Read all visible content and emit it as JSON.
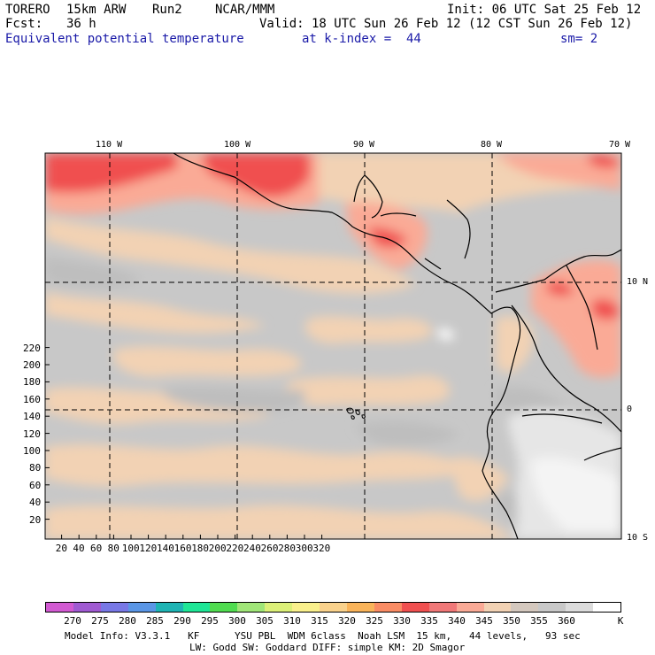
{
  "header": {
    "model": "TORERO",
    "resolution": "15km ARW",
    "run": "Run2",
    "org": "NCAR/MMM",
    "init": "Init: 06 UTC Sat 25 Feb 12",
    "fcst_label": "Fcst:",
    "fcst_value": "36 h",
    "valid": "Valid: 18 UTC Sun 26 Feb 12 (12 CST Sun 26 Feb 12)",
    "field": "Equivalent potential temperature",
    "level": "at k-index =  44",
    "smoothing": "sm= 2"
  },
  "map": {
    "top_lon_labels": [
      "110 W",
      "100 W",
      "90 W",
      "80 W",
      "70 W"
    ],
    "right_lat_labels": [
      "10 N",
      "0",
      "10 S"
    ],
    "y_ticks": [
      "220",
      "200",
      "180",
      "160",
      "140",
      "120",
      "100",
      "80",
      "60",
      "40",
      "20"
    ],
    "x_ticks": [
      "20",
      "40",
      "60",
      "80",
      "100",
      "120",
      "140",
      "160",
      "180",
      "200",
      "220",
      "240",
      "260",
      "280",
      "300",
      "320"
    ],
    "background_color": "#c8c8c8"
  },
  "colorbar": {
    "labels": [
      "270",
      "275",
      "280",
      "285",
      "290",
      "295",
      "300",
      "305",
      "310",
      "315",
      "320",
      "325",
      "330",
      "335",
      "340",
      "345",
      "350",
      "355",
      "360"
    ],
    "unit": "K",
    "colors": [
      "#d25ad2",
      "#a05ad2",
      "#7878e6",
      "#5a96e6",
      "#1eb4b4",
      "#1ee696",
      "#50dc50",
      "#a0e678",
      "#dcf078",
      "#faf08c",
      "#fad28c",
      "#fab45a",
      "#fa8c64",
      "#f05050",
      "#f07878",
      "#faaa96",
      "#f2d2b4",
      "#d4c8be",
      "#c8c8c8",
      "#dcdcdc",
      "#ffffff"
    ]
  },
  "footer": {
    "line1": "Model Info: V3.3.1   KF      YSU PBL  WDM 6class  Noah LSM  15 km,   44 levels,   93 sec",
    "line2": "LW: Godd SW: Goddard DIFF: simple KM: 2D Smagor"
  }
}
